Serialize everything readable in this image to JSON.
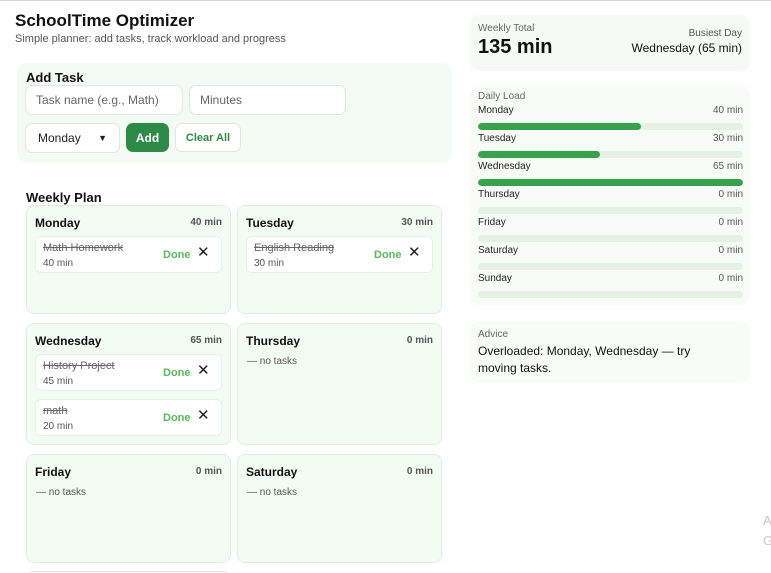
{
  "app": {
    "title": "SchoolTime Optimizer",
    "subtitle": "Simple planner: add tasks, track workload and progress"
  },
  "add_task": {
    "title": "Add Task",
    "task_placeholder": "Task name (e.g., Math)",
    "minutes_placeholder": "Minutes",
    "day_selected": "Monday",
    "add_label": "Add",
    "clear_label": "Clear All"
  },
  "weekly_plan": {
    "title": "Weekly Plan",
    "no_tasks_text": "— no tasks",
    "done_label": "Done",
    "days": [
      {
        "name": "Monday",
        "total": "40 min",
        "tasks": [
          {
            "name": "Math Homework",
            "minutes": "40 min"
          }
        ]
      },
      {
        "name": "Tuesday",
        "total": "30 min",
        "tasks": [
          {
            "name": "English Reading",
            "minutes": "30 min"
          }
        ]
      },
      {
        "name": "Wednesday",
        "total": "65 min",
        "tasks": [
          {
            "name": "History Project",
            "minutes": "45 min"
          },
          {
            "name": "math",
            "minutes": "20 min"
          }
        ]
      },
      {
        "name": "Thursday",
        "total": "0 min",
        "tasks": []
      },
      {
        "name": "Friday",
        "total": "0 min",
        "tasks": []
      },
      {
        "name": "Saturday",
        "total": "0 min",
        "tasks": []
      }
    ]
  },
  "summary": {
    "weekly_total_label": "Weekly Total",
    "weekly_total_value": "135 min",
    "busiest_day_label": "Busiest Day",
    "busiest_day_value": "Wednesday (65 min)"
  },
  "daily_load": {
    "title": "Daily Load",
    "days": [
      {
        "day": "Monday",
        "minutes": "40 min",
        "fraction": 0.615
      },
      {
        "day": "Tuesday",
        "minutes": "30 min",
        "fraction": 0.46
      },
      {
        "day": "Wednesday",
        "minutes": "65 min",
        "fraction": 1.0
      },
      {
        "day": "Thursday",
        "minutes": "0 min",
        "fraction": 0
      },
      {
        "day": "Friday",
        "minutes": "0 min",
        "fraction": 0
      },
      {
        "day": "Saturday",
        "minutes": "0 min",
        "fraction": 0
      },
      {
        "day": "Sunday",
        "minutes": "0 min",
        "fraction": 0
      }
    ]
  },
  "advice": {
    "label": "Advice",
    "text": "Overloaded: Monday, Wednesday — try moving tasks."
  },
  "edge_clip": {
    "line1": "A",
    "line2": "G"
  },
  "colors": {
    "accent": "#2e8b47",
    "done": "#5cb85c",
    "bar_fill": "#3aa14c",
    "bar_track": "#e4f1e4",
    "card_bg": "#f3fcf2"
  },
  "icons": {
    "remove": "close-icon",
    "select": "chevron-down-icon"
  }
}
